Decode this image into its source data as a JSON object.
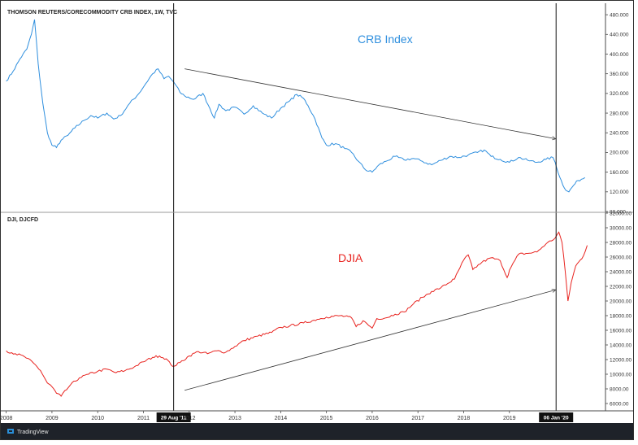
{
  "branding": {
    "name": "TradingView",
    "icon": "tradingview-logo-icon"
  },
  "chart_data": [
    {
      "type": "line",
      "title": "THOMSON REUTERS/CORECOMMODITY CRB INDEX, 1W, TVC",
      "annotation": "CRB Index",
      "color": "#2f8fde",
      "ylim": [
        80,
        500
      ],
      "yticks": [
        "480.000",
        "440.000",
        "400.000",
        "360.000",
        "320.000",
        "280.000",
        "240.000",
        "200.000",
        "160.000",
        "120.000",
        "80.000"
      ],
      "ytick_values": [
        480,
        440,
        400,
        360,
        320,
        280,
        240,
        200,
        160,
        120,
        80
      ],
      "x": [
        2008.0,
        2008.15,
        2008.3,
        2008.45,
        2008.55,
        2008.62,
        2008.7,
        2008.8,
        2008.9,
        2009.0,
        2009.1,
        2009.2,
        2009.35,
        2009.5,
        2009.7,
        2009.85,
        2010.0,
        2010.2,
        2010.35,
        2010.5,
        2010.7,
        2010.9,
        2011.05,
        2011.2,
        2011.32,
        2011.45,
        2011.55,
        2011.67,
        2011.8,
        2011.9,
        2012.1,
        2012.3,
        2012.45,
        2012.55,
        2012.65,
        2012.8,
        2013.0,
        2013.2,
        2013.4,
        2013.6,
        2013.8,
        2014.0,
        2014.2,
        2014.35,
        2014.5,
        2014.6,
        2014.75,
        2014.9,
        2015.0,
        2015.2,
        2015.4,
        2015.55,
        2015.7,
        2015.85,
        2016.0,
        2016.15,
        2016.3,
        2016.5,
        2016.7,
        2016.9,
        2017.1,
        2017.3,
        2017.5,
        2017.7,
        2017.9,
        2018.1,
        2018.3,
        2018.45,
        2018.6,
        2018.8,
        2019.0,
        2019.2,
        2019.4,
        2019.6,
        2019.8,
        2019.95,
        2020.0,
        2020.1,
        2020.2,
        2020.3,
        2020.4,
        2020.5,
        2020.65
      ],
      "y": [
        345,
        365,
        390,
        410,
        440,
        470,
        380,
        300,
        240,
        215,
        210,
        225,
        235,
        250,
        265,
        275,
        270,
        280,
        268,
        275,
        300,
        320,
        340,
        360,
        370,
        350,
        355,
        342,
        322,
        315,
        308,
        320,
        290,
        270,
        298,
        285,
        292,
        278,
        295,
        280,
        270,
        290,
        305,
        318,
        310,
        295,
        268,
        230,
        215,
        218,
        208,
        200,
        182,
        165,
        160,
        175,
        182,
        192,
        185,
        188,
        182,
        175,
        184,
        192,
        190,
        195,
        200,
        205,
        192,
        186,
        180,
        190,
        184,
        180,
        186,
        190,
        180,
        150,
        128,
        120,
        133,
        143,
        149
      ]
    },
    {
      "type": "line",
      "title": "DJI, DJCFD",
      "annotation": "DJIA",
      "color": "#e8231f",
      "ylim": [
        5000,
        32000
      ],
      "yticks": [
        "32000.00",
        "30000.00",
        "28000.00",
        "26000.00",
        "24000.00",
        "22000.00",
        "20000.00",
        "18000.00",
        "16000.00",
        "14000.00",
        "12000.00",
        "10000.00",
        "8000.00",
        "6000.00"
      ],
      "ytick_values": [
        32000,
        30000,
        28000,
        26000,
        24000,
        22000,
        20000,
        18000,
        16000,
        14000,
        12000,
        10000,
        8000,
        6000
      ],
      "x": [
        2008.0,
        2008.2,
        2008.4,
        2008.6,
        2008.75,
        2008.9,
        2009.0,
        2009.1,
        2009.2,
        2009.4,
        2009.6,
        2009.8,
        2010.0,
        2010.2,
        2010.4,
        2010.6,
        2010.8,
        2011.0,
        2011.2,
        2011.35,
        2011.5,
        2011.6,
        2011.67,
        2011.8,
        2012.0,
        2012.2,
        2012.4,
        2012.6,
        2012.8,
        2013.0,
        2013.2,
        2013.5,
        2013.8,
        2014.0,
        2014.2,
        2014.5,
        2014.8,
        2015.0,
        2015.3,
        2015.55,
        2015.65,
        2015.8,
        2016.0,
        2016.1,
        2016.3,
        2016.5,
        2016.7,
        2016.9,
        2017.1,
        2017.3,
        2017.5,
        2017.8,
        2018.0,
        2018.1,
        2018.2,
        2018.4,
        2018.6,
        2018.8,
        2018.95,
        2019.0,
        2019.2,
        2019.4,
        2019.6,
        2019.8,
        2020.0,
        2020.08,
        2020.15,
        2020.22,
        2020.28,
        2020.35,
        2020.45,
        2020.55,
        2020.62,
        2020.7
      ],
      "y": [
        13200,
        12800,
        12400,
        11500,
        10500,
        8800,
        8300,
        7400,
        7000,
        8500,
        9500,
        10000,
        10400,
        10700,
        10200,
        10500,
        11000,
        11700,
        12300,
        12500,
        12100,
        11300,
        11100,
        11600,
        12500,
        13100,
        12800,
        13200,
        13000,
        13800,
        14600,
        15200,
        15700,
        16400,
        16600,
        17000,
        17500,
        17800,
        18000,
        17700,
        16500,
        17300,
        16300,
        17600,
        17700,
        18200,
        18500,
        19600,
        20500,
        21300,
        21800,
        23000,
        25600,
        26300,
        24300,
        25300,
        25900,
        25500,
        23200,
        24200,
        26400,
        26500,
        26700,
        27800,
        28600,
        29400,
        28000,
        24000,
        20000,
        22500,
        24800,
        25600,
        26200,
        27600
      ]
    }
  ],
  "shared_axis": {
    "xticks": [
      "2008",
      "2009",
      "2010",
      "2011",
      "2012",
      "2013",
      "2014",
      "2015",
      "2016",
      "2017",
      "2018",
      "2019"
    ],
    "xtick_values": [
      2008,
      2009,
      2010,
      2011,
      2012,
      2013,
      2014,
      2015,
      2016,
      2017,
      2018,
      2019
    ],
    "xlim": [
      2007.9,
      2021.1
    ]
  },
  "markers": [
    {
      "label": "29 Aug '11",
      "x": 2011.66
    },
    {
      "label": "06 Jan '20",
      "x": 2020.02
    }
  ],
  "trend_arrows": [
    {
      "pane": 0,
      "from": [
        2011.9,
        370
      ],
      "to": [
        2020.0,
        228
      ]
    },
    {
      "pane": 1,
      "from": [
        2011.9,
        7800
      ],
      "to": [
        2020.0,
        21500
      ]
    }
  ]
}
